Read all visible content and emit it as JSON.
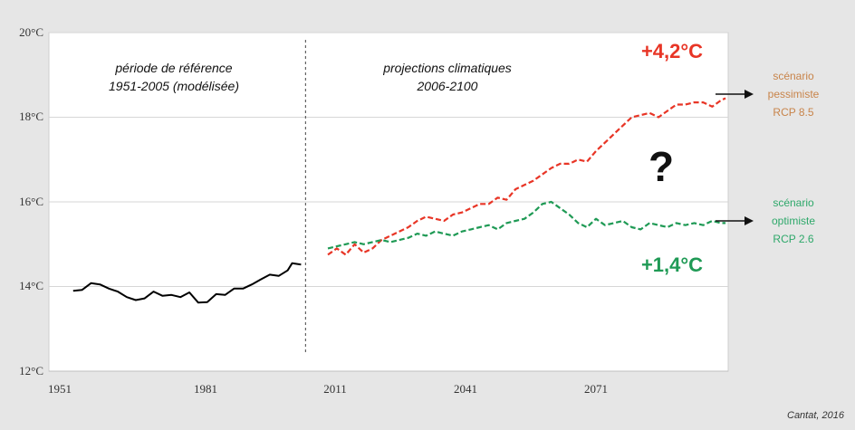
{
  "chart_data": {
    "type": "line",
    "ylim": [
      12,
      20
    ],
    "xlim": [
      1951,
      2108
    ],
    "yticks": [
      12,
      14,
      16,
      18,
      20
    ],
    "ytick_labels": [
      "12°C",
      "14°C",
      "16°C",
      "18°C",
      "20°C"
    ],
    "xticks": [
      1951,
      1981,
      2011,
      2041,
      2071
    ],
    "xtick_labels": [
      "1951",
      "1981",
      "2011",
      "2041",
      "2071"
    ],
    "grid": true,
    "divider_year": 2006,
    "annotations": {
      "reference_period": [
        "période de référence",
        "1951-2005 (modélisée)"
      ],
      "projection_period": [
        "projections climatiques",
        "2006-2100"
      ],
      "rcp85_delta": "+4,2°C",
      "rcp26_delta": "+1,4°C",
      "question_mark": "?",
      "credit": "Cantat, 2016"
    },
    "scenarios": {
      "pessimist": [
        "scénario",
        "pessimiste",
        "RCP 8.5"
      ],
      "optimist": [
        "scénario",
        "optimiste",
        "RCP 2.6"
      ]
    },
    "series": [
      {
        "color": "#000000",
        "style": "solid",
        "x": [
          1954,
          1956,
          1958,
          1960,
          1962,
          1964,
          1966,
          1968,
          1970,
          1972,
          1974,
          1976,
          1978,
          1980,
          1982,
          1984,
          1986,
          1988,
          1990,
          1992,
          1994,
          1996,
          1998,
          2000,
          2002,
          2003,
          2005
        ],
        "y": [
          13.9,
          13.92,
          14.08,
          14.05,
          13.95,
          13.88,
          13.75,
          13.68,
          13.72,
          13.88,
          13.78,
          13.8,
          13.75,
          13.86,
          13.62,
          13.63,
          13.82,
          13.8,
          13.95,
          13.95,
          14.05,
          14.17,
          14.28,
          14.25,
          14.38,
          14.55,
          14.52
        ]
      },
      {
        "color": "#e83526",
        "style": "dashed",
        "x": [
          2011,
          2013,
          2015,
          2017,
          2019,
          2021,
          2023,
          2025,
          2027,
          2029,
          2031,
          2033,
          2035,
          2037,
          2039,
          2041,
          2043,
          2045,
          2047,
          2049,
          2051,
          2053,
          2055,
          2057,
          2059,
          2061,
          2063,
          2065,
          2067,
          2069,
          2071,
          2073,
          2075,
          2077,
          2079,
          2081,
          2083,
          2085,
          2087,
          2089,
          2091,
          2093,
          2095,
          2097,
          2099,
          2100
        ],
        "y": [
          14.75,
          14.9,
          14.75,
          15.0,
          14.8,
          14.9,
          15.1,
          15.2,
          15.3,
          15.4,
          15.55,
          15.65,
          15.6,
          15.55,
          15.7,
          15.75,
          15.85,
          15.95,
          15.95,
          16.1,
          16.05,
          16.3,
          16.4,
          16.5,
          16.65,
          16.8,
          16.9,
          16.9,
          17.0,
          16.95,
          17.2,
          17.4,
          17.6,
          17.8,
          18.0,
          18.05,
          18.1,
          18.0,
          18.15,
          18.3,
          18.3,
          18.35,
          18.35,
          18.25,
          18.4,
          18.45
        ]
      },
      {
        "color": "#1f9a55",
        "style": "dashed",
        "x": [
          2011,
          2013,
          2015,
          2017,
          2019,
          2021,
          2023,
          2025,
          2027,
          2029,
          2031,
          2033,
          2035,
          2037,
          2039,
          2041,
          2043,
          2045,
          2047,
          2049,
          2051,
          2053,
          2055,
          2057,
          2059,
          2061,
          2063,
          2065,
          2067,
          2069,
          2071,
          2073,
          2075,
          2077,
          2079,
          2081,
          2083,
          2085,
          2087,
          2089,
          2091,
          2093,
          2095,
          2097,
          2099,
          2100
        ],
        "y": [
          14.9,
          14.95,
          15.0,
          15.05,
          15.0,
          15.05,
          15.1,
          15.05,
          15.1,
          15.15,
          15.25,
          15.2,
          15.3,
          15.25,
          15.2,
          15.3,
          15.35,
          15.4,
          15.45,
          15.35,
          15.5,
          15.55,
          15.6,
          15.75,
          15.95,
          16.0,
          15.85,
          15.7,
          15.5,
          15.4,
          15.6,
          15.45,
          15.5,
          15.55,
          15.4,
          15.35,
          15.5,
          15.45,
          15.4,
          15.5,
          15.45,
          15.5,
          15.45,
          15.55,
          15.5,
          15.5
        ]
      }
    ]
  }
}
